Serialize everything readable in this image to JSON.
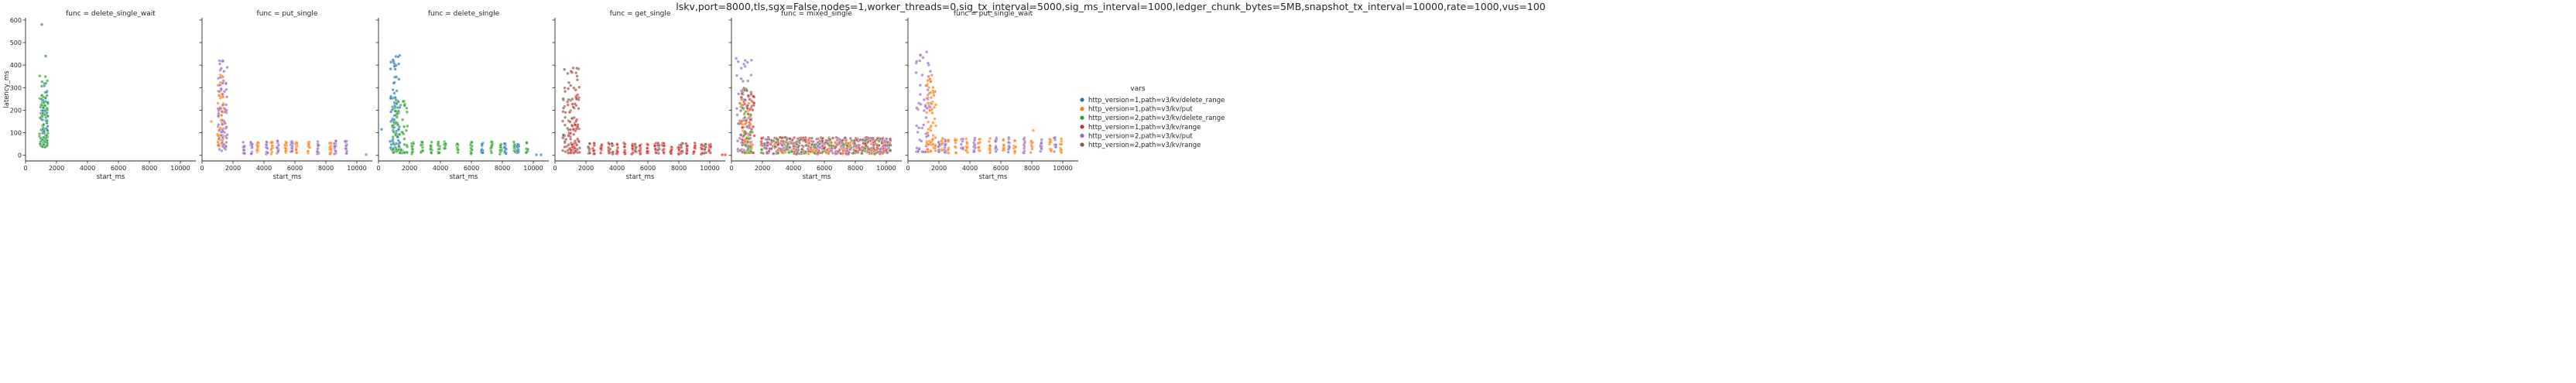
{
  "suptitle": "lskv,port=8000,tls,sgx=False,nodes=1,worker_threads=0,sig_tx_interval=5000,sig_ms_interval=1000,ledger_chunk_bytes=5MB,snapshot_tx_interval=10000,rate=1000,vus=100",
  "legend": {
    "title": "vars",
    "placement": "right",
    "entries": [
      {
        "label": "http_version=1,path=v3/kv/delete_range",
        "color": "#1f77b4"
      },
      {
        "label": "http_version=1,path=v3/kv/put",
        "color": "#ff7f0e"
      },
      {
        "label": "http_version=2,path=v3/kv/delete_range",
        "color": "#2ca02c"
      },
      {
        "label": "http_version=1,path=v3/kv/range",
        "color": "#d62728"
      },
      {
        "label": "http_version=2,path=v3/kv/put",
        "color": "#9467bd"
      },
      {
        "label": "http_version=2,path=v3/kv/range",
        "color": "#8c564b"
      }
    ]
  },
  "chart_data": [
    {
      "type": "scatter",
      "title": "func = delete_single_wait",
      "xlabel": "start_ms",
      "ylabel": "latency_ms",
      "xlim": [
        0,
        11000
      ],
      "ylim": [
        -25,
        610
      ],
      "xticks": [
        "0",
        "2000",
        "4000",
        "6000",
        "8000",
        "10000"
      ],
      "yticks": [
        "0",
        "100",
        "200",
        "300",
        "400",
        "500",
        "600"
      ],
      "series": [
        {
          "series": 0,
          "mode": "burst",
          "x0": 1000,
          "x1": 1450,
          "ymin": 40,
          "ymax": 320,
          "n": 60,
          "outliers": [
            [
              1050,
              580
            ],
            [
              1300,
              440
            ]
          ]
        },
        {
          "series": 2,
          "mode": "burst",
          "x0": 900,
          "x1": 1450,
          "ymin": 35,
          "ymax": 365,
          "n": 75,
          "outliers": []
        }
      ]
    },
    {
      "type": "scatter",
      "title": "func = put_single",
      "xlabel": "start_ms",
      "ylabel": "",
      "xlim": [
        0,
        11000
      ],
      "ylim": [
        -25,
        610
      ],
      "xticks": [
        "0",
        "2000",
        "4000",
        "6000",
        "8000",
        "10000"
      ],
      "yticks": [],
      "series": [
        {
          "series": 1,
          "mode": "burst",
          "x0": 1000,
          "x1": 1450,
          "ymin": 40,
          "ymax": 360,
          "n": 70,
          "outliers": [
            [
              600,
              150
            ]
          ]
        },
        {
          "series": 4,
          "mode": "burst",
          "x0": 1050,
          "x1": 1650,
          "ymin": 20,
          "ymax": 445,
          "n": 70,
          "outliers": []
        },
        {
          "series": 1,
          "mode": "clusters",
          "xs": [
            3600,
            4500,
            5400,
            6100,
            6900,
            8300
          ],
          "ymin": 5,
          "ymax": 60,
          "n": 14
        },
        {
          "series": 4,
          "mode": "clusters",
          "xs": [
            2700,
            3200,
            4200,
            4900,
            5800,
            7500,
            8600,
            9300
          ],
          "ymin": 5,
          "ymax": 65,
          "n": 14
        },
        {
          "series": 4,
          "mode": "points",
          "pts": [
            [
              10600,
              3
            ]
          ]
        }
      ]
    },
    {
      "type": "scatter",
      "title": "func = delete_single",
      "xlabel": "start_ms",
      "ylabel": "",
      "xlim": [
        0,
        11000
      ],
      "ylim": [
        -25,
        610
      ],
      "xticks": [
        "0",
        "2000",
        "4000",
        "6000",
        "8000",
        "10000"
      ],
      "yticks": [],
      "series": [
        {
          "series": 0,
          "mode": "burst",
          "x0": 750,
          "x1": 1400,
          "ymin": 20,
          "ymax": 465,
          "n": 90,
          "outliers": [
            [
              200,
              115
            ]
          ]
        },
        {
          "series": 2,
          "mode": "burst",
          "x0": 900,
          "x1": 1900,
          "ymin": 10,
          "ymax": 260,
          "n": 70,
          "outliers": []
        },
        {
          "series": 2,
          "mode": "clusters",
          "xs": [
            2200,
            2800,
            3400,
            3900,
            4300,
            5100,
            6000,
            7300,
            7900,
            8800,
            9600
          ],
          "ymin": 5,
          "ymax": 60,
          "n": 12
        },
        {
          "series": 0,
          "mode": "clusters",
          "xs": [
            6700,
            8200,
            9000
          ],
          "ymin": 5,
          "ymax": 55,
          "n": 12
        },
        {
          "series": 0,
          "mode": "points",
          "pts": [
            [
              10200,
              2
            ],
            [
              10500,
              2
            ]
          ]
        }
      ]
    },
    {
      "type": "scatter",
      "title": "func = get_single",
      "xlabel": "start_ms",
      "ylabel": "",
      "xlim": [
        0,
        11000
      ],
      "ylim": [
        -25,
        610
      ],
      "xticks": [
        "0",
        "2000",
        "4000",
        "6000",
        "8000",
        "10000"
      ],
      "yticks": [],
      "series": [
        {
          "series": 5,
          "mode": "burst",
          "x0": 500,
          "x1": 1600,
          "ymin": 10,
          "ymax": 405,
          "n": 90,
          "outliers": []
        },
        {
          "series": 3,
          "mode": "burst",
          "x0": 800,
          "x1": 1500,
          "ymin": 10,
          "ymax": 300,
          "n": 40,
          "outliers": []
        },
        {
          "series": 3,
          "mode": "clusters",
          "xs": [
            2500,
            3000,
            3500,
            4000,
            4500,
            5000,
            5500,
            6000,
            6500,
            7000,
            7500,
            8000,
            8500,
            9000,
            9500,
            10000
          ],
          "ymin": 5,
          "ymax": 55,
          "n": 10
        },
        {
          "series": 5,
          "mode": "clusters",
          "xs": [
            2200,
            3700,
            5200,
            6700,
            8200,
            9700
          ],
          "ymin": 5,
          "ymax": 55,
          "n": 10
        },
        {
          "series": 3,
          "mode": "points",
          "pts": [
            [
              10800,
              2
            ],
            [
              11000,
              2
            ]
          ]
        }
      ]
    },
    {
      "type": "scatter",
      "title": "func = mixed_single",
      "xlabel": "start_ms",
      "ylabel": "",
      "xlim": [
        0,
        11000
      ],
      "ylim": [
        -25,
        610
      ],
      "xticks": [
        "0",
        "2000",
        "4000",
        "6000",
        "8000",
        "10000"
      ],
      "yticks": [],
      "series": [
        {
          "series": 4,
          "mode": "burst",
          "x0": 300,
          "x1": 1300,
          "ymin": 10,
          "ymax": 445,
          "n": 60,
          "outliers": []
        },
        {
          "series": 5,
          "mode": "burst",
          "x0": 500,
          "x1": 1400,
          "ymin": 10,
          "ymax": 300,
          "n": 50,
          "outliers": []
        },
        {
          "series": 3,
          "mode": "burst",
          "x0": 600,
          "x1": 1500,
          "ymin": 10,
          "ymax": 280,
          "n": 50,
          "outliers": []
        },
        {
          "series": 1,
          "mode": "burst",
          "x0": 600,
          "x1": 1400,
          "ymin": 10,
          "ymax": 250,
          "n": 25,
          "outliers": []
        },
        {
          "series": 2,
          "mode": "burst",
          "x0": 700,
          "x1": 1300,
          "ymin": 10,
          "ymax": 220,
          "n": 20,
          "outliers": []
        },
        {
          "series": 3,
          "mode": "band",
          "x0": 1900,
          "x1": 10300,
          "ymin": 5,
          "ymax": 80,
          "n": 260
        },
        {
          "series": 5,
          "mode": "band",
          "x0": 1900,
          "x1": 10300,
          "ymin": 5,
          "ymax": 80,
          "n": 180
        },
        {
          "series": 4,
          "mode": "band",
          "x0": 1900,
          "x1": 10300,
          "ymin": 5,
          "ymax": 75,
          "n": 80
        },
        {
          "series": 1,
          "mode": "band",
          "x0": 1900,
          "x1": 10300,
          "ymin": 5,
          "ymax": 70,
          "n": 40
        },
        {
          "series": 2,
          "mode": "band",
          "x0": 1900,
          "x1": 10300,
          "ymin": 5,
          "ymax": 70,
          "n": 40
        }
      ]
    },
    {
      "type": "scatter",
      "title": "func = put_single_wait",
      "xlabel": "start_ms",
      "ylabel": "",
      "xlim": [
        0,
        11000
      ],
      "ylim": [
        -25,
        610
      ],
      "xticks": [
        "0",
        "2000",
        "4000",
        "6000",
        "8000",
        "10000"
      ],
      "yticks": [],
      "series": [
        {
          "series": 4,
          "mode": "burst",
          "x0": 500,
          "x1": 1500,
          "ymin": 15,
          "ymax": 465,
          "n": 60,
          "outliers": []
        },
        {
          "series": 1,
          "mode": "burst",
          "x0": 1200,
          "x1": 1800,
          "ymin": 15,
          "ymax": 360,
          "n": 70,
          "outliers": []
        },
        {
          "series": 1,
          "mode": "clusters",
          "xs": [
            2200,
            2600,
            3100,
            3800,
            4600,
            5300,
            6200,
            6900,
            8000,
            9200,
            9900
          ],
          "ymin": 10,
          "ymax": 75,
          "n": 10
        },
        {
          "series": 4,
          "mode": "clusters",
          "xs": [
            2000,
            2400,
            3500,
            4300,
            5700,
            6500,
            7500,
            8600,
            9500
          ],
          "ymin": 10,
          "ymax": 80,
          "n": 10
        },
        {
          "series": 1,
          "mode": "points",
          "pts": [
            [
              8100,
              110
            ]
          ]
        }
      ]
    }
  ]
}
